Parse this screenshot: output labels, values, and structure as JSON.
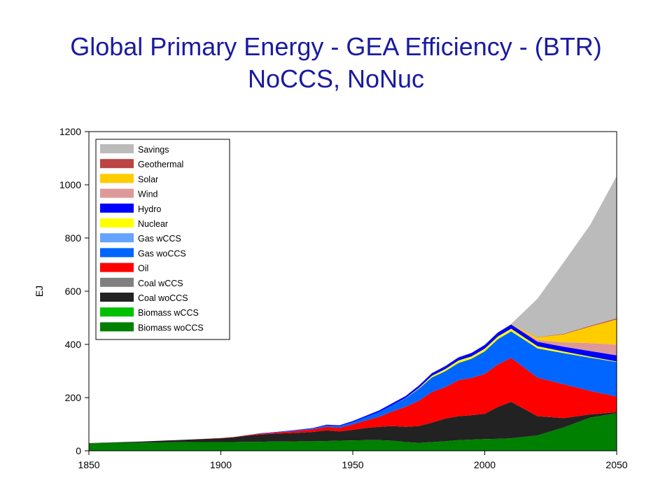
{
  "chart_data": {
    "type": "area",
    "stacked": true,
    "title": "Global Primary Energy - GEA Efficiency - (BTR)",
    "subtitle": "NoCCS, NoNuc",
    "xlabel": "",
    "ylabel": "EJ",
    "xlim": [
      1850,
      2050
    ],
    "ylim": [
      0,
      1200
    ],
    "xticks": [
      "1850",
      "1900",
      "1950",
      "2000",
      "2050"
    ],
    "yticks": [
      "0",
      "200",
      "400",
      "600",
      "800",
      "1000",
      "1200"
    ],
    "grid": false,
    "legend_position": "top-left",
    "x": [
      1850,
      1860,
      1870,
      1880,
      1890,
      1900,
      1905,
      1910,
      1915,
      1920,
      1925,
      1930,
      1935,
      1940,
      1945,
      1950,
      1955,
      1960,
      1965,
      1970,
      1975,
      1980,
      1985,
      1990,
      1995,
      2000,
      2005,
      2010,
      2020,
      2030,
      2040,
      2050
    ],
    "series": [
      {
        "name": "Biomass woCCS",
        "color": "#008000",
        "values": [
          28,
          30,
          31,
          32,
          33,
          33,
          33,
          34,
          34,
          35,
          35,
          36,
          36,
          37,
          38,
          39,
          40,
          40,
          38,
          33,
          30,
          33,
          36,
          40,
          42,
          44,
          45,
          47,
          58,
          88,
          125,
          141
        ]
      },
      {
        "name": "Biomass wCCS",
        "color": "#00c000",
        "values": [
          0,
          0,
          0,
          0,
          0,
          0,
          0,
          0,
          0,
          0,
          0,
          0,
          0,
          0,
          0,
          0,
          0,
          0,
          0,
          0,
          0,
          0,
          0,
          0,
          0,
          0,
          0,
          0,
          0,
          0,
          0,
          0
        ]
      },
      {
        "name": "Coal woCCS",
        "color": "#222222",
        "values": [
          1,
          2,
          4,
          7,
          10,
          14,
          18,
          23,
          27,
          29,
          31,
          32,
          35,
          40,
          35,
          40,
          46,
          50,
          55,
          57,
          63,
          73,
          85,
          90,
          92,
          95,
          120,
          137,
          72,
          35,
          12,
          4
        ]
      },
      {
        "name": "Coal wCCS",
        "color": "#808080",
        "values": [
          0,
          0,
          0,
          0,
          0,
          0,
          0,
          0,
          0,
          0,
          0,
          0,
          0,
          0,
          0,
          0,
          0,
          0,
          0,
          0,
          0,
          0,
          0,
          0,
          0,
          0,
          0,
          0,
          0,
          0,
          0,
          0
        ]
      },
      {
        "name": "Oil",
        "color": "#ff0000",
        "values": [
          0,
          0,
          0,
          0,
          0,
          1,
          1,
          2,
          3,
          4,
          6,
          8,
          10,
          13,
          14,
          20,
          28,
          38,
          55,
          75,
          95,
          115,
          118,
          135,
          140,
          150,
          160,
          165,
          145,
          127,
          88,
          59
        ]
      },
      {
        "name": "Gas woCCS",
        "color": "#0066ff",
        "values": [
          0,
          0,
          0,
          0,
          0,
          0,
          0,
          0,
          1,
          1,
          2,
          2,
          3,
          5,
          6,
          9,
          13,
          18,
          24,
          32,
          45,
          55,
          60,
          65,
          72,
          85,
          95,
          100,
          110,
          117,
          125,
          130
        ]
      },
      {
        "name": "Gas wCCS",
        "color": "#66a3ff",
        "values": [
          0,
          0,
          0,
          0,
          0,
          0,
          0,
          0,
          0,
          0,
          0,
          0,
          0,
          0,
          0,
          0,
          0,
          0,
          0,
          0,
          0,
          0,
          0,
          0,
          0,
          0,
          0,
          0,
          0,
          0,
          0,
          0
        ]
      },
      {
        "name": "Nuclear",
        "color": "#ffff00",
        "values": [
          0,
          0,
          0,
          0,
          0,
          0,
          0,
          0,
          0,
          0,
          0,
          0,
          0,
          0,
          0,
          0,
          0,
          0,
          0,
          1,
          3,
          6,
          8,
          9,
          9,
          10,
          10,
          10,
          8,
          6,
          4,
          2
        ]
      },
      {
        "name": "Hydro",
        "color": "#0000ff",
        "values": [
          0,
          0,
          0,
          0,
          0,
          0,
          0,
          0,
          1,
          1,
          1,
          2,
          2,
          3,
          3,
          4,
          5,
          6,
          7,
          8,
          9,
          10,
          11,
          12,
          13,
          14,
          15,
          16,
          17,
          18,
          21,
          23
        ]
      },
      {
        "name": "Wind",
        "color": "#dd9999",
        "values": [
          0,
          0,
          0,
          0,
          0,
          0,
          0,
          0,
          0,
          0,
          0,
          0,
          0,
          0,
          0,
          0,
          0,
          0,
          0,
          0,
          0,
          0,
          0,
          0,
          0,
          0,
          0,
          1,
          6,
          17,
          30,
          40
        ]
      },
      {
        "name": "Solar",
        "color": "#ffcc00",
        "values": [
          0,
          0,
          0,
          0,
          0,
          0,
          0,
          0,
          0,
          0,
          0,
          0,
          0,
          0,
          0,
          0,
          0,
          0,
          0,
          0,
          0,
          0,
          0,
          0,
          0,
          0,
          0,
          1,
          10,
          30,
          62,
          95
        ]
      },
      {
        "name": "Geothermal",
        "color": "#bb4444",
        "values": [
          0,
          0,
          0,
          0,
          0,
          0,
          0,
          0,
          0,
          0,
          0,
          0,
          0,
          0,
          0,
          0,
          0,
          0,
          0,
          0,
          0,
          0,
          0,
          0,
          0,
          0,
          0,
          0,
          1,
          2,
          3,
          4
        ]
      },
      {
        "name": "Savings",
        "color": "#bbbbbb",
        "values": [
          0,
          0,
          0,
          0,
          0,
          0,
          0,
          0,
          0,
          0,
          0,
          0,
          0,
          0,
          0,
          0,
          0,
          0,
          0,
          0,
          0,
          0,
          0,
          0,
          0,
          0,
          0,
          0,
          145,
          270,
          380,
          535
        ]
      }
    ]
  }
}
